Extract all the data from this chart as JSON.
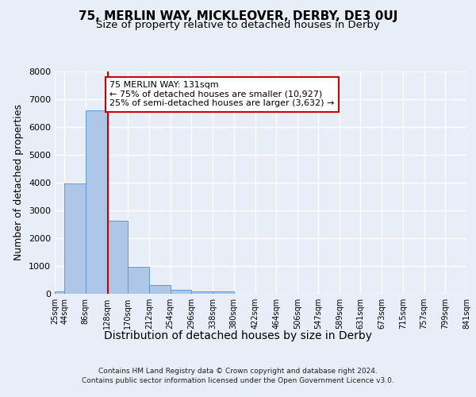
{
  "title": "75, MERLIN WAY, MICKLEOVER, DERBY, DE3 0UJ",
  "subtitle": "Size of property relative to detached houses in Derby",
  "xlabel": "Distribution of detached houses by size in Derby",
  "ylabel": "Number of detached properties",
  "footer_line1": "Contains HM Land Registry data © Crown copyright and database right 2024.",
  "footer_line2": "Contains public sector information licensed under the Open Government Licence v3.0.",
  "bin_edges": [
    25,
    44,
    86,
    128,
    170,
    212,
    254,
    296,
    338,
    380,
    422,
    464,
    506,
    547,
    589,
    631,
    673,
    715,
    757,
    799,
    841
  ],
  "bar_heights": [
    75,
    3985,
    6590,
    2630,
    960,
    310,
    130,
    100,
    75,
    0,
    0,
    0,
    0,
    0,
    0,
    0,
    0,
    0,
    0,
    0
  ],
  "bar_color": "#aec6e8",
  "bar_edge_color": "#5b9bd5",
  "vline_x": 131,
  "vline_color": "#cc0000",
  "annotation_text": "75 MERLIN WAY: 131sqm\n← 75% of detached houses are smaller (10,927)\n25% of semi-detached houses are larger (3,632) →",
  "annotation_box_color": "#ffffff",
  "annotation_box_edge_color": "#cc0000",
  "ylim": [
    0,
    8000
  ],
  "background_color": "#e8eef7",
  "plot_background_color": "#e8eef7",
  "grid_color": "#ffffff",
  "tick_labels": [
    "25sqm",
    "44sqm",
    "86sqm",
    "128sqm",
    "170sqm",
    "212sqm",
    "254sqm",
    "296sqm",
    "338sqm",
    "380sqm",
    "422sqm",
    "464sqm",
    "506sqm",
    "547sqm",
    "589sqm",
    "631sqm",
    "673sqm",
    "715sqm",
    "757sqm",
    "799sqm",
    "841sqm"
  ],
  "title_fontsize": 11,
  "subtitle_fontsize": 9.5,
  "axis_label_fontsize": 9,
  "tick_fontsize": 7,
  "annotation_fontsize": 8,
  "footer_fontsize": 6.5
}
